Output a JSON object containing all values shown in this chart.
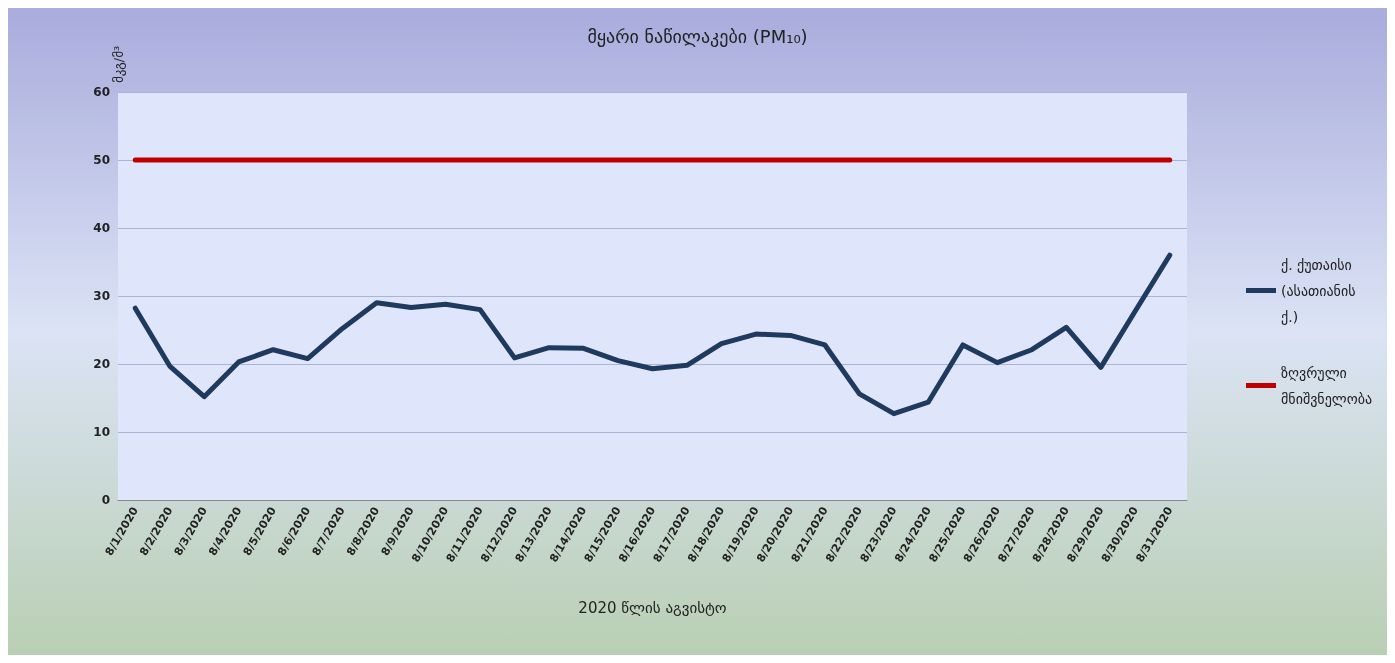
{
  "chart_data": {
    "type": "line",
    "title": "მყარი ნაწილაკები (PM₁₀)",
    "ylabel": "მკგ/მ³",
    "xlabel": "2020 წლის აგვისტო",
    "categories": [
      "8/1/2020",
      "8/2/2020",
      "8/3/2020",
      "8/4/2020",
      "8/5/2020",
      "8/6/2020",
      "8/7/2020",
      "8/8/2020",
      "8/9/2020",
      "8/10/2020",
      "8/11/2020",
      "8/12/2020",
      "8/13/2020",
      "8/14/2020",
      "8/15/2020",
      "8/16/2020",
      "8/17/2020",
      "8/18/2020",
      "8/19/2020",
      "8/20/2020",
      "8/21/2020",
      "8/22/2020",
      "8/23/2020",
      "8/24/2020",
      "8/25/2020",
      "8/26/2020",
      "8/27/2020",
      "8/28/2020",
      "8/29/2020",
      "8/30/2020",
      "8/31/2020"
    ],
    "series": [
      {
        "name": "ქ. ქუთაისი (ასათიანის ქ.)",
        "color": "#1f3a5f",
        "values": [
          28.2,
          19.7,
          15.2,
          20.3,
          22.1,
          20.8,
          25.2,
          29.0,
          28.3,
          28.8,
          28.0,
          20.9,
          22.4,
          22.3,
          20.5,
          19.3,
          19.8,
          23.0,
          24.4,
          24.2,
          22.8,
          15.6,
          12.7,
          14.4,
          22.8,
          20.2,
          22.1,
          25.4,
          19.5,
          27.8,
          36.0
        ]
      },
      {
        "name": "ზღვრული მნიშვნელობა",
        "color": "#c00000",
        "values": [
          50,
          50,
          50,
          50,
          50,
          50,
          50,
          50,
          50,
          50,
          50,
          50,
          50,
          50,
          50,
          50,
          50,
          50,
          50,
          50,
          50,
          50,
          50,
          50,
          50,
          50,
          50,
          50,
          50,
          50,
          50
        ]
      }
    ],
    "ylim": [
      0,
      60
    ],
    "yticks": [
      0,
      10,
      20,
      30,
      40,
      50,
      60
    ],
    "grid": "y",
    "legend": "right",
    "marker": "none",
    "line_style": "solid"
  }
}
